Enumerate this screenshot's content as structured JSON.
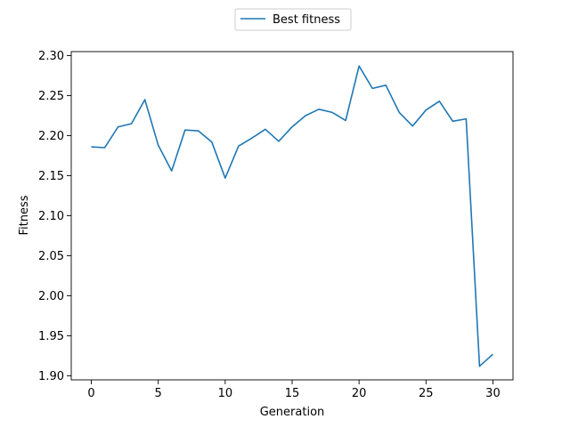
{
  "chart_data": {
    "type": "line",
    "title": "",
    "xlabel": "Generation",
    "ylabel": "Fitness",
    "xlim": [
      -1.5,
      31.5
    ],
    "ylim": [
      1.895,
      2.305
    ],
    "x_ticks": [
      0,
      5,
      10,
      15,
      20,
      25,
      30
    ],
    "y_ticks": [
      1.9,
      1.95,
      2.0,
      2.05,
      2.1,
      2.15,
      2.2,
      2.25,
      2.3
    ],
    "x_tick_labels": [
      "0",
      "5",
      "10",
      "15",
      "20",
      "25",
      "30"
    ],
    "y_tick_labels": [
      "1.90",
      "1.95",
      "2.00",
      "2.05",
      "2.10",
      "2.15",
      "2.20",
      "2.25",
      "2.30"
    ],
    "grid": false,
    "legend": "upper-center-outside",
    "series": [
      {
        "name": "Best fitness",
        "color": "#1f77b4",
        "x": [
          0,
          1,
          2,
          3,
          4,
          5,
          6,
          7,
          8,
          9,
          10,
          11,
          12,
          13,
          14,
          15,
          16,
          17,
          18,
          19,
          20,
          21,
          22,
          23,
          24,
          25,
          26,
          27,
          28,
          29,
          30
        ],
        "values": [
          2.186,
          2.185,
          2.211,
          2.215,
          2.245,
          2.188,
          2.156,
          2.207,
          2.206,
          2.192,
          2.147,
          2.187,
          2.197,
          2.208,
          2.193,
          2.211,
          2.225,
          2.233,
          2.229,
          2.219,
          2.287,
          2.259,
          2.263,
          2.229,
          2.212,
          2.232,
          2.243,
          2.218,
          2.221,
          1.912,
          1.927
        ]
      }
    ]
  }
}
